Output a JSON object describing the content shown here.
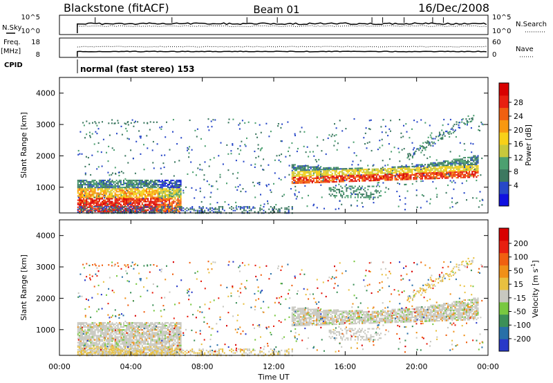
{
  "header": {
    "title": "Blackstone (fitACF)",
    "beam": "Beam 01",
    "date": "16/Dec/2008"
  },
  "top_panels": {
    "nsky_label": "N.Sky",
    "nsky_ticks": [
      "10^5",
      "10^0"
    ],
    "nsearch_label": "N.Search",
    "nsearch_ticks": [
      "10^5",
      "10^0"
    ],
    "freq_label": "Freq.",
    "freq_unit": "[MHz]",
    "freq_ticks": [
      "18",
      "8"
    ],
    "nave_label": "Nave",
    "nave_ticks": [
      "60",
      "0"
    ],
    "cpid_label": "CPID",
    "cpid_text": "normal (fast stereo) 153"
  },
  "chart_data": [
    {
      "type": "heatmap",
      "name": "power-panel",
      "ylabel": "Slant Range [km]",
      "y_ticks": [
        "4000",
        "3000",
        "2000",
        "1000"
      ],
      "ylim": [
        180,
        4500
      ],
      "x_range_hours": [
        0,
        24
      ],
      "data_start_hour": 1.0,
      "colorbar": {
        "label": "Power [dB]",
        "ticks": [
          "28",
          "24",
          "20",
          "16",
          "12",
          "8",
          "4"
        ],
        "range": [
          0,
          30
        ],
        "colors": [
          "#1010e0",
          "#2848c8",
          "#3c7860",
          "#4ca070",
          "#c8c83c",
          "#f8d018",
          "#f89810",
          "#f06010",
          "#e82010",
          "#d80000"
        ]
      }
    },
    {
      "type": "heatmap",
      "name": "velocity-panel",
      "ylabel": "Slant Range [km]",
      "y_ticks": [
        "4000",
        "3000",
        "2000",
        "1000"
      ],
      "ylim": [
        180,
        4500
      ],
      "x_range_hours": [
        0,
        24
      ],
      "data_start_hour": 1.0,
      "colorbar": {
        "label": "Velocity [m s^-1]",
        "ticks": [
          "200",
          "100",
          "50",
          "15",
          "-15",
          "-50",
          "-100",
          "-200"
        ],
        "range": [
          -250,
          250
        ],
        "colors": [
          "#2838c8",
          "#2870a8",
          "#3c9058",
          "#78c840",
          "#c8c8c0",
          "#e8c040",
          "#f09018",
          "#f06010",
          "#e82010",
          "#d80000"
        ]
      }
    }
  ],
  "time_axis": {
    "ticks": [
      "00:00",
      "04:00",
      "08:00",
      "12:00",
      "16:00",
      "20:00",
      "00:00"
    ],
    "label": "Time UT"
  }
}
